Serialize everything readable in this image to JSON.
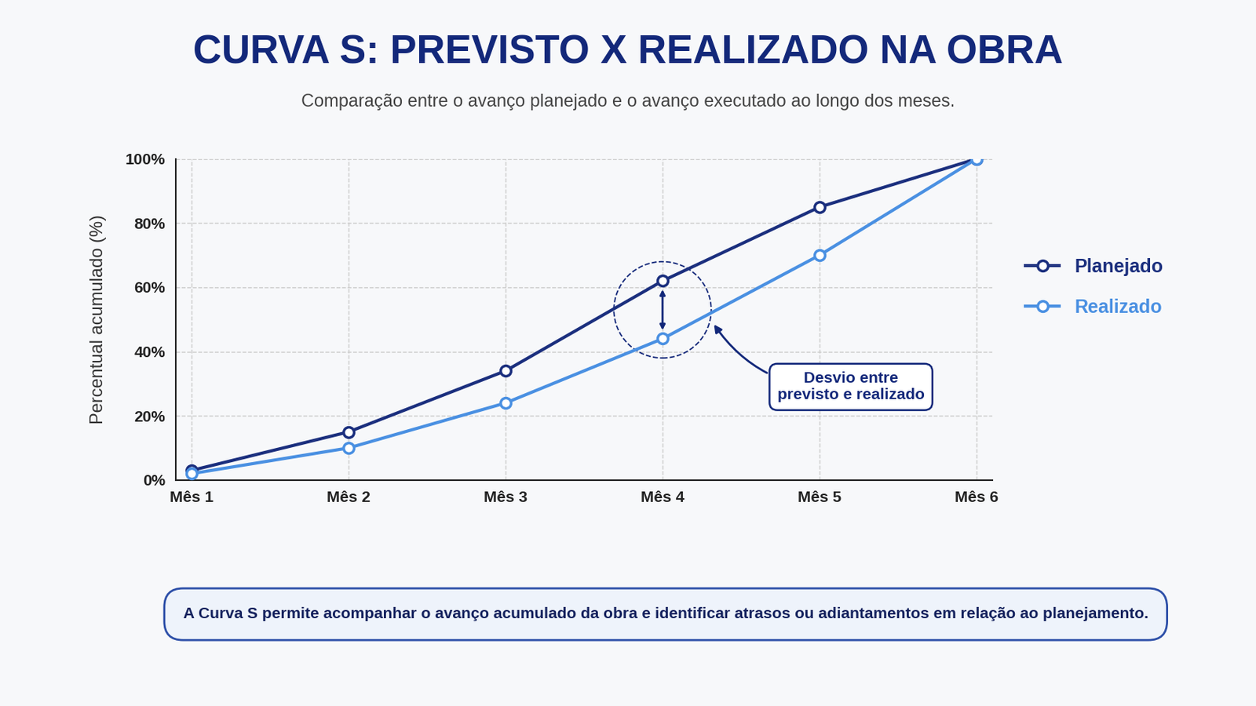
{
  "chart_data": {
    "type": "line",
    "title": "CURVA S: PREVISTO X REALIZADO NA OBRA",
    "subtitle": "Comparação entre o avanço planejado e o avanço executado ao longo dos meses.",
    "y_label": "Percentual acumulado (%)",
    "categories": [
      "Mês 1",
      "Mês 2",
      "Mês 3",
      "Mês 4",
      "Mês 5",
      "Mês 6"
    ],
    "series": [
      {
        "name": "Planejado",
        "color": "#1b2f7e",
        "marker": "o",
        "line_style": "solid",
        "values": [
          3,
          15,
          34,
          62,
          85,
          100
        ]
      },
      {
        "name": "Realizado",
        "color": "#4a90e2",
        "marker": "o",
        "line_style": "solid",
        "values": [
          2,
          10,
          24,
          44,
          70,
          100
        ]
      }
    ],
    "ylim": [
      0,
      100
    ],
    "yticks": [
      {
        "value": 0,
        "label": "0%"
      },
      {
        "value": 20,
        "label": "20%"
      },
      {
        "value": 40,
        "label": "40%"
      },
      {
        "value": 60,
        "label": "60%"
      },
      {
        "value": 80,
        "label": "80%"
      },
      {
        "value": 100,
        "label": "100%"
      }
    ],
    "grid": true,
    "legend": "right",
    "annotation": {
      "text": "Desvio entre\nprevisto e realizado",
      "at": "Mês 4"
    },
    "note": "A Curva S permite acompanhar o avanço acumulado da obra e identificar atrasos ou adiantamentos em relação ao planejamento."
  }
}
